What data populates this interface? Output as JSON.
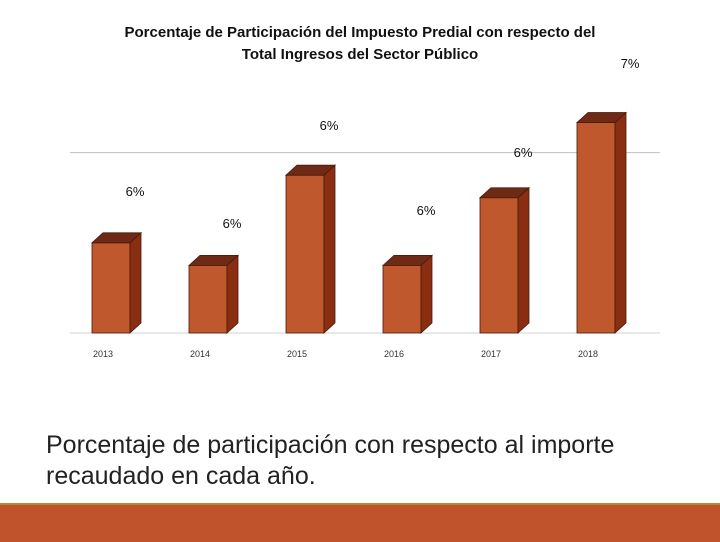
{
  "chart_data": {
    "type": "bar",
    "title_lines": [
      "Porcentaje de Participación del Impuesto Predial con respecto del",
      "Total Ingresos del Sector Público"
    ],
    "categories": [
      "2013",
      "2014",
      "2015",
      "2016",
      "2017",
      "2018"
    ],
    "values": [
      5.9,
      5.75,
      6.35,
      5.75,
      6.2,
      6.7
    ],
    "labels": [
      "6%",
      "6%",
      "6%",
      "6%",
      "6%",
      "7%"
    ],
    "ylim": [
      5.3,
      6.95
    ],
    "gridline": 6.5,
    "xlabel": "",
    "ylabel": "",
    "colors": {
      "front": "#c0582e",
      "side": "#8a2e12",
      "top": "#6e2a14",
      "edge": "#4a1a0a",
      "grid": "#bfbfbf"
    }
  },
  "caption": "Porcentaje de participación con respecto al importe recaudado en cada año.",
  "accent_color": "#c0532b"
}
